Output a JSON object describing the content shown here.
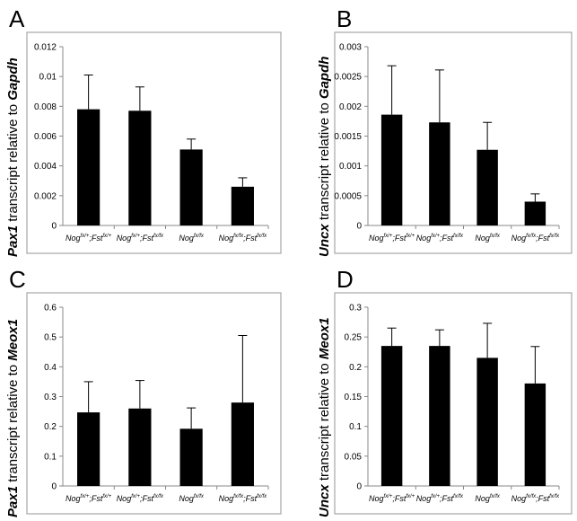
{
  "chart_data": [
    {
      "panel": "A",
      "type": "bar",
      "ylabel_gene": "Pax1",
      "ylabel_middle": " transcript relative to ",
      "ylabel_ref": "Gapdh",
      "ylim": [
        0,
        0.012
      ],
      "yticks": [
        "0",
        "0.002",
        "0.004",
        "0.006",
        "0.008",
        "0.01",
        "0.012"
      ],
      "categories": [
        {
          "nog": "Nog",
          "nog_sup": "fx/+",
          "fst": "Fst",
          "fst_sup": "fx/+"
        },
        {
          "nog": "Nog",
          "nog_sup": "fx/+",
          "fst": "Fst",
          "fst_sup": "fx/fx"
        },
        {
          "nog": "Nog",
          "nog_sup": "fx/fx",
          "fst": "",
          "fst_sup": ""
        },
        {
          "nog": "Nog",
          "nog_sup": "fx/fx",
          "fst": "Fst",
          "fst_sup": "fx/fx"
        }
      ],
      "values": [
        0.0078,
        0.0077,
        0.0051,
        0.0026
      ],
      "errors": [
        0.0023,
        0.0016,
        0.0007,
        0.0006
      ]
    },
    {
      "panel": "B",
      "type": "bar",
      "ylabel_gene": "Uncx",
      "ylabel_middle": " transcript relative to ",
      "ylabel_ref": "Gapdh",
      "ylim": [
        0,
        0.003
      ],
      "yticks": [
        "0",
        "0.0005",
        "0.001",
        "0.0015",
        "0.002",
        "0.0025",
        "0.003"
      ],
      "categories": [
        {
          "nog": "Nog",
          "nog_sup": "fx/+",
          "fst": "Fst",
          "fst_sup": "fx/+"
        },
        {
          "nog": "Nog",
          "nog_sup": "fx/+",
          "fst": "Fst",
          "fst_sup": "fx/fx"
        },
        {
          "nog": "Nog",
          "nog_sup": "fx/fx",
          "fst": "",
          "fst_sup": ""
        },
        {
          "nog": "Nog",
          "nog_sup": "fx/fx",
          "fst": "Fst",
          "fst_sup": "fx/fx"
        }
      ],
      "values": [
        0.00186,
        0.00173,
        0.00127,
        0.0004
      ],
      "errors": [
        0.00082,
        0.00088,
        0.00046,
        0.00013
      ]
    },
    {
      "panel": "C",
      "type": "bar",
      "ylabel_gene": "Pax1",
      "ylabel_middle": " transcript relative to ",
      "ylabel_ref": "Meox1",
      "ylim": [
        0,
        0.6
      ],
      "yticks": [
        "0",
        "0.1",
        "0.2",
        "0.3",
        "0.4",
        "0.5",
        "0.6"
      ],
      "categories": [
        {
          "nog": "Nog",
          "nog_sup": "fx/+",
          "fst": "Fst",
          "fst_sup": "fx/+"
        },
        {
          "nog": "Nog",
          "nog_sup": "fx/+",
          "fst": "Fst",
          "fst_sup": "fx/fx"
        },
        {
          "nog": "Nog",
          "nog_sup": "fx/fx",
          "fst": "",
          "fst_sup": ""
        },
        {
          "nog": "Nog",
          "nog_sup": "fx/fx",
          "fst": "Fst",
          "fst_sup": "fx/fx"
        }
      ],
      "values": [
        0.247,
        0.26,
        0.192,
        0.28
      ],
      "errors": [
        0.103,
        0.094,
        0.07,
        0.225
      ]
    },
    {
      "panel": "D",
      "type": "bar",
      "ylabel_gene": "Uncx",
      "ylabel_middle": " transcript relative to ",
      "ylabel_ref": "Meox1",
      "ylim": [
        0,
        0.3
      ],
      "yticks": [
        "0",
        "0.05",
        "0.1",
        "0.15",
        "0.2",
        "0.25",
        "0.3"
      ],
      "categories": [
        {
          "nog": "Nog",
          "nog_sup": "fx/+",
          "fst": "Fst",
          "fst_sup": "fx/+"
        },
        {
          "nog": "Nog",
          "nog_sup": "fx/+",
          "fst": "Fst",
          "fst_sup": "fx/fx"
        },
        {
          "nog": "Nog",
          "nog_sup": "fx/fx",
          "fst": "",
          "fst_sup": ""
        },
        {
          "nog": "Nog",
          "nog_sup": "fx/fx",
          "fst": "Fst",
          "fst_sup": "fx/fx"
        }
      ],
      "values": [
        0.235,
        0.235,
        0.215,
        0.172
      ],
      "errors": [
        0.03,
        0.027,
        0.058,
        0.062
      ]
    }
  ],
  "colors": {
    "bar": "#000000",
    "frame": "#a6a6a6",
    "axis": "#888888",
    "text": "#000000"
  }
}
